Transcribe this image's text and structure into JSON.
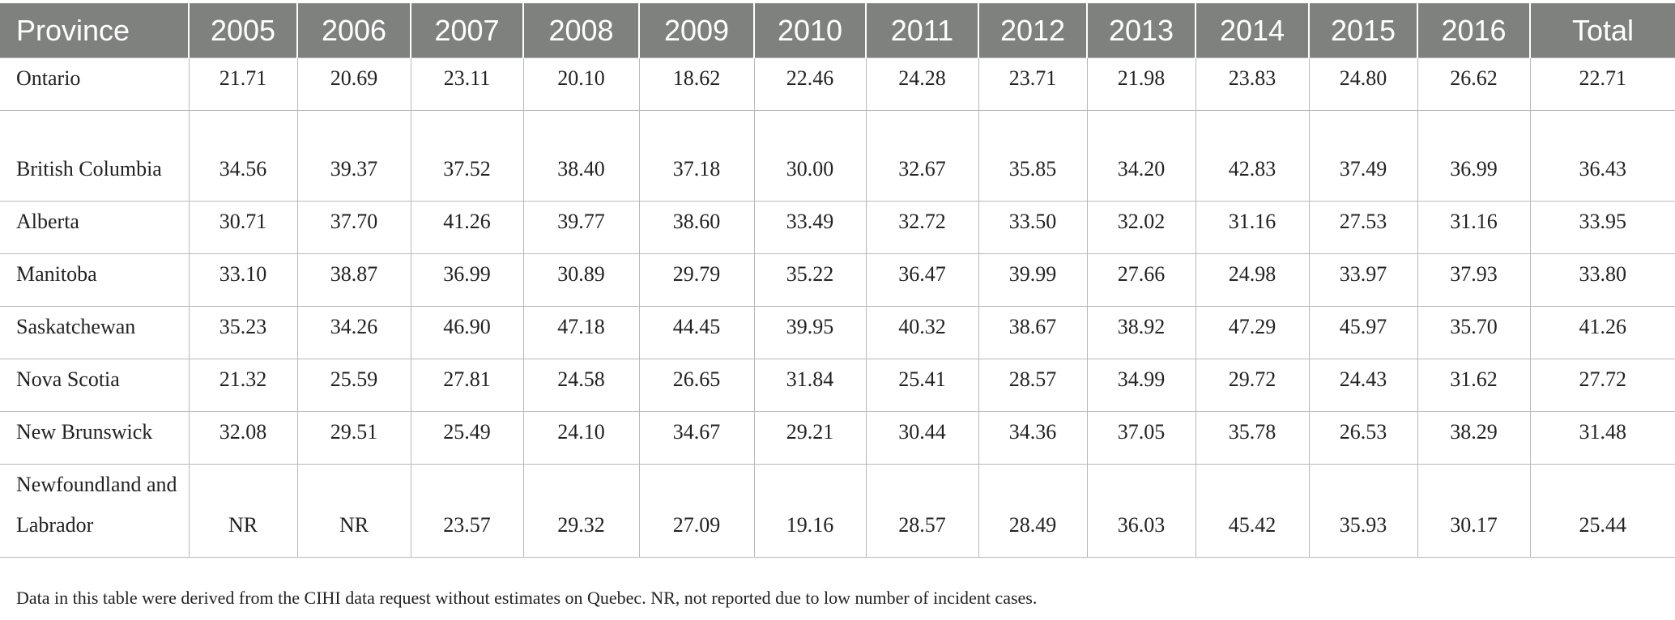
{
  "table": {
    "headers": [
      "Province",
      "2005",
      "2006",
      "2007",
      "2008",
      "2009",
      "2010",
      "2011",
      "2012",
      "2013",
      "2014",
      "2015",
      "2016",
      "Total"
    ],
    "rows": [
      {
        "province": "Ontario",
        "values": [
          "21.71",
          "20.69",
          "23.11",
          "20.10",
          "18.62",
          "22.46",
          "24.28",
          "23.71",
          "21.98",
          "23.83",
          "24.80",
          "26.62",
          "22.71"
        ]
      },
      {
        "province": "British Columbia",
        "values": [
          "34.56",
          "39.37",
          "37.52",
          "38.40",
          "37.18",
          "30.00",
          "32.67",
          "35.85",
          "34.20",
          "42.83",
          "37.49",
          "36.99",
          "36.43"
        ]
      },
      {
        "province": "Alberta",
        "values": [
          "30.71",
          "37.70",
          "41.26",
          "39.77",
          "38.60",
          "33.49",
          "32.72",
          "33.50",
          "32.02",
          "31.16",
          "27.53",
          "31.16",
          "33.95"
        ]
      },
      {
        "province": "Manitoba",
        "values": [
          "33.10",
          "38.87",
          "36.99",
          "30.89",
          "29.79",
          "35.22",
          "36.47",
          "39.99",
          "27.66",
          "24.98",
          "33.97",
          "37.93",
          "33.80"
        ]
      },
      {
        "province": "Saskatchewan",
        "values": [
          "35.23",
          "34.26",
          "46.90",
          "47.18",
          "44.45",
          "39.95",
          "40.32",
          "38.67",
          "38.92",
          "47.29",
          "45.97",
          "35.70",
          "41.26"
        ]
      },
      {
        "province": "Nova Scotia",
        "values": [
          "21.32",
          "25.59",
          "27.81",
          "24.58",
          "26.65",
          "31.84",
          "25.41",
          "28.57",
          "34.99",
          "29.72",
          "24.43",
          "31.62",
          "27.72"
        ]
      },
      {
        "province": "New Brunswick",
        "values": [
          "32.08",
          "29.51",
          "25.49",
          "24.10",
          "34.67",
          "29.21",
          "30.44",
          "34.36",
          "37.05",
          "35.78",
          "26.53",
          "38.29",
          "31.48"
        ]
      },
      {
        "province": "Newfoundland and Labrador",
        "values": [
          "NR",
          "NR",
          "23.57",
          "29.32",
          "27.09",
          "19.16",
          "28.57",
          "28.49",
          "36.03",
          "45.42",
          "35.93",
          "30.17",
          "25.44"
        ]
      }
    ]
  },
  "footnote": "Data in this table were derived from the CIHI data request without estimates on Quebec. NR, not reported due to low number of incident cases.",
  "colors": {
    "header_bg": "#7f817f",
    "header_text": "#ffffff",
    "grid": "#b9b9b9"
  }
}
